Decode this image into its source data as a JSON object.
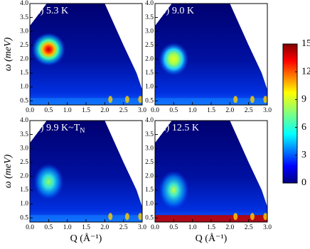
{
  "chart_data": [
    {
      "type": "heatmap",
      "label": "(a) 5.3 K",
      "ylabel": "ω (meV)",
      "xlim": [
        0,
        3
      ],
      "ylim": [
        0.35,
        4
      ],
      "xticks": [
        {
          "value": 0,
          "label": "0.0"
        },
        0.5,
        {
          "value": 1,
          "label": "1.0"
        },
        1.5,
        {
          "value": 2,
          "label": "2.0"
        },
        2.5,
        {
          "value": 3,
          "label": "3.0"
        }
      ],
      "yticks": [
        0.5,
        {
          "value": 1,
          "label": "1.0"
        },
        1.5,
        {
          "value": 2,
          "label": "2.0"
        },
        2.5,
        {
          "value": 3,
          "label": "3.0"
        },
        3.5,
        {
          "value": 4,
          "label": "4.0"
        }
      ]
    },
    {
      "type": "heatmap",
      "label": "(b) 9.0 K",
      "xlim": [
        0,
        3
      ],
      "ylim": [
        0.35,
        4
      ],
      "xticks": [
        {
          "value": 0,
          "label": "0.0"
        },
        0.5,
        {
          "value": 1,
          "label": "1.0"
        },
        1.5,
        {
          "value": 2,
          "label": "2.0"
        },
        2.5,
        {
          "value": 3,
          "label": "3.0"
        }
      ],
      "yticks": [
        0.5,
        {
          "value": 1,
          "label": "1.0"
        },
        1.5,
        {
          "value": 2,
          "label": "2.0"
        },
        2.5,
        {
          "value": 3,
          "label": "3.0"
        },
        3.5,
        {
          "value": 4,
          "label": "4.0"
        }
      ]
    },
    {
      "type": "heatmap",
      "label": "(c) 9.9 K~T",
      "label_sub": "N",
      "ylabel": "ω (meV)",
      "xlabel": "Q (Å⁻¹)",
      "xlim": [
        0,
        3
      ],
      "ylim": [
        0.35,
        4
      ],
      "xticks": [
        {
          "value": 0,
          "label": "0.0"
        },
        0.5,
        {
          "value": 1,
          "label": "1.0"
        },
        1.5,
        {
          "value": 2,
          "label": "2.0"
        },
        2.5,
        {
          "value": 3,
          "label": "3.0"
        }
      ],
      "yticks": [
        0.5,
        {
          "value": 1,
          "label": "1.0"
        },
        1.5,
        {
          "value": 2,
          "label": "2.0"
        },
        2.5,
        {
          "value": 3,
          "label": "3.0"
        },
        3.5,
        {
          "value": 4,
          "label": "4.0"
        }
      ]
    },
    {
      "type": "heatmap",
      "label": "(d) 12.5 K",
      "xlabel": "Q (Å⁻¹)",
      "xlim": [
        0,
        3
      ],
      "ylim": [
        0.35,
        4
      ],
      "xticks": [
        {
          "value": 0,
          "label": "0.0"
        },
        0.5,
        {
          "value": 1,
          "label": "1.0"
        },
        1.5,
        {
          "value": 2,
          "label": "2.0"
        },
        2.5,
        {
          "value": 3,
          "label": "3.0"
        }
      ],
      "yticks": [
        0.5,
        {
          "value": 1,
          "label": "1.0"
        },
        1.5,
        {
          "value": 2,
          "label": "2.0"
        },
        2.5,
        {
          "value": 3,
          "label": "3.0"
        },
        3.5,
        {
          "value": 4,
          "label": "4.0"
        }
      ]
    },
    {
      "type": "colorbar",
      "ylim": [
        0,
        15
      ],
      "yticks": [
        0,
        3,
        6,
        9,
        12,
        15
      ]
    }
  ]
}
